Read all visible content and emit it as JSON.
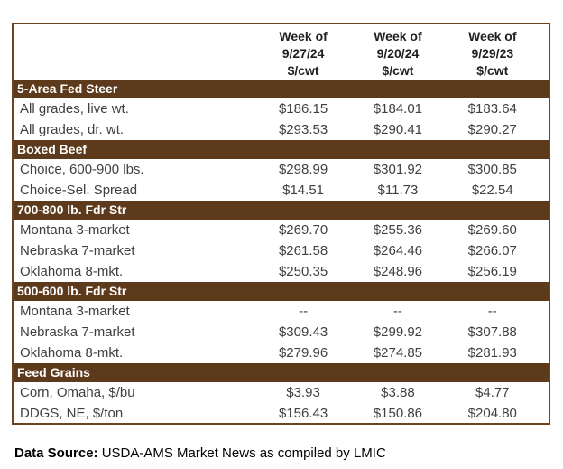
{
  "table": {
    "header": {
      "columns": [
        {
          "line1": "Week of",
          "line2": "9/27/24",
          "line3": "$/cwt"
        },
        {
          "line1": "Week of",
          "line2": "9/20/24",
          "line3": "$/cwt"
        },
        {
          "line1": "Week of",
          "line2": "9/29/23",
          "line3": "$/cwt"
        }
      ]
    },
    "sections": [
      {
        "title": "5-Area Fed Steer",
        "rows": [
          {
            "label": "All grades, live wt.",
            "values": [
              "$186.15",
              "$184.01",
              "$183.64"
            ]
          },
          {
            "label": "All grades, dr. wt.",
            "values": [
              "$293.53",
              "$290.41",
              "$290.27"
            ]
          }
        ]
      },
      {
        "title": "Boxed Beef",
        "rows": [
          {
            "label": "Choice, 600-900 lbs.",
            "values": [
              "$298.99",
              "$301.92",
              "$300.85"
            ]
          },
          {
            "label": "Choice-Sel. Spread",
            "values": [
              "$14.51",
              "$11.73",
              "$22.54"
            ]
          }
        ]
      },
      {
        "title": "700-800 lb. Fdr Str",
        "rows": [
          {
            "label": "Montana 3-market",
            "values": [
              "$269.70",
              "$255.36",
              "$269.60"
            ]
          },
          {
            "label": "Nebraska 7-market",
            "values": [
              "$261.58",
              "$264.46",
              "$266.07"
            ]
          },
          {
            "label": "Oklahoma 8-mkt.",
            "values": [
              "$250.35",
              "$248.96",
              "$256.19"
            ]
          }
        ]
      },
      {
        "title": "500-600 lb. Fdr Str",
        "rows": [
          {
            "label": "Montana 3-market",
            "values": [
              "--",
              "--",
              "--"
            ]
          },
          {
            "label": "Nebraska 7-market",
            "values": [
              "$309.43",
              "$299.92",
              "$307.88"
            ]
          },
          {
            "label": "Oklahoma 8-mkt.",
            "values": [
              "$279.96",
              "$274.85",
              "$281.93"
            ]
          }
        ]
      },
      {
        "title": "Feed Grains",
        "rows": [
          {
            "label": "Corn, Omaha, $/bu",
            "values": [
              "$3.93",
              "$3.88",
              "$4.77"
            ]
          },
          {
            "label": "DDGS, NE, $/ton",
            "values": [
              "$156.43",
              "$150.86",
              "$204.80"
            ]
          }
        ]
      }
    ]
  },
  "footer": {
    "bold_label": "Data Source:",
    "text": "USDA-AMS Market News as compiled by LMIC"
  },
  "colors": {
    "section_bg": "#5e3a1c",
    "section_text": "#ffffff",
    "table_border": "#6b4423",
    "data_text": "#404040",
    "header_text": "#1f1f1f"
  }
}
